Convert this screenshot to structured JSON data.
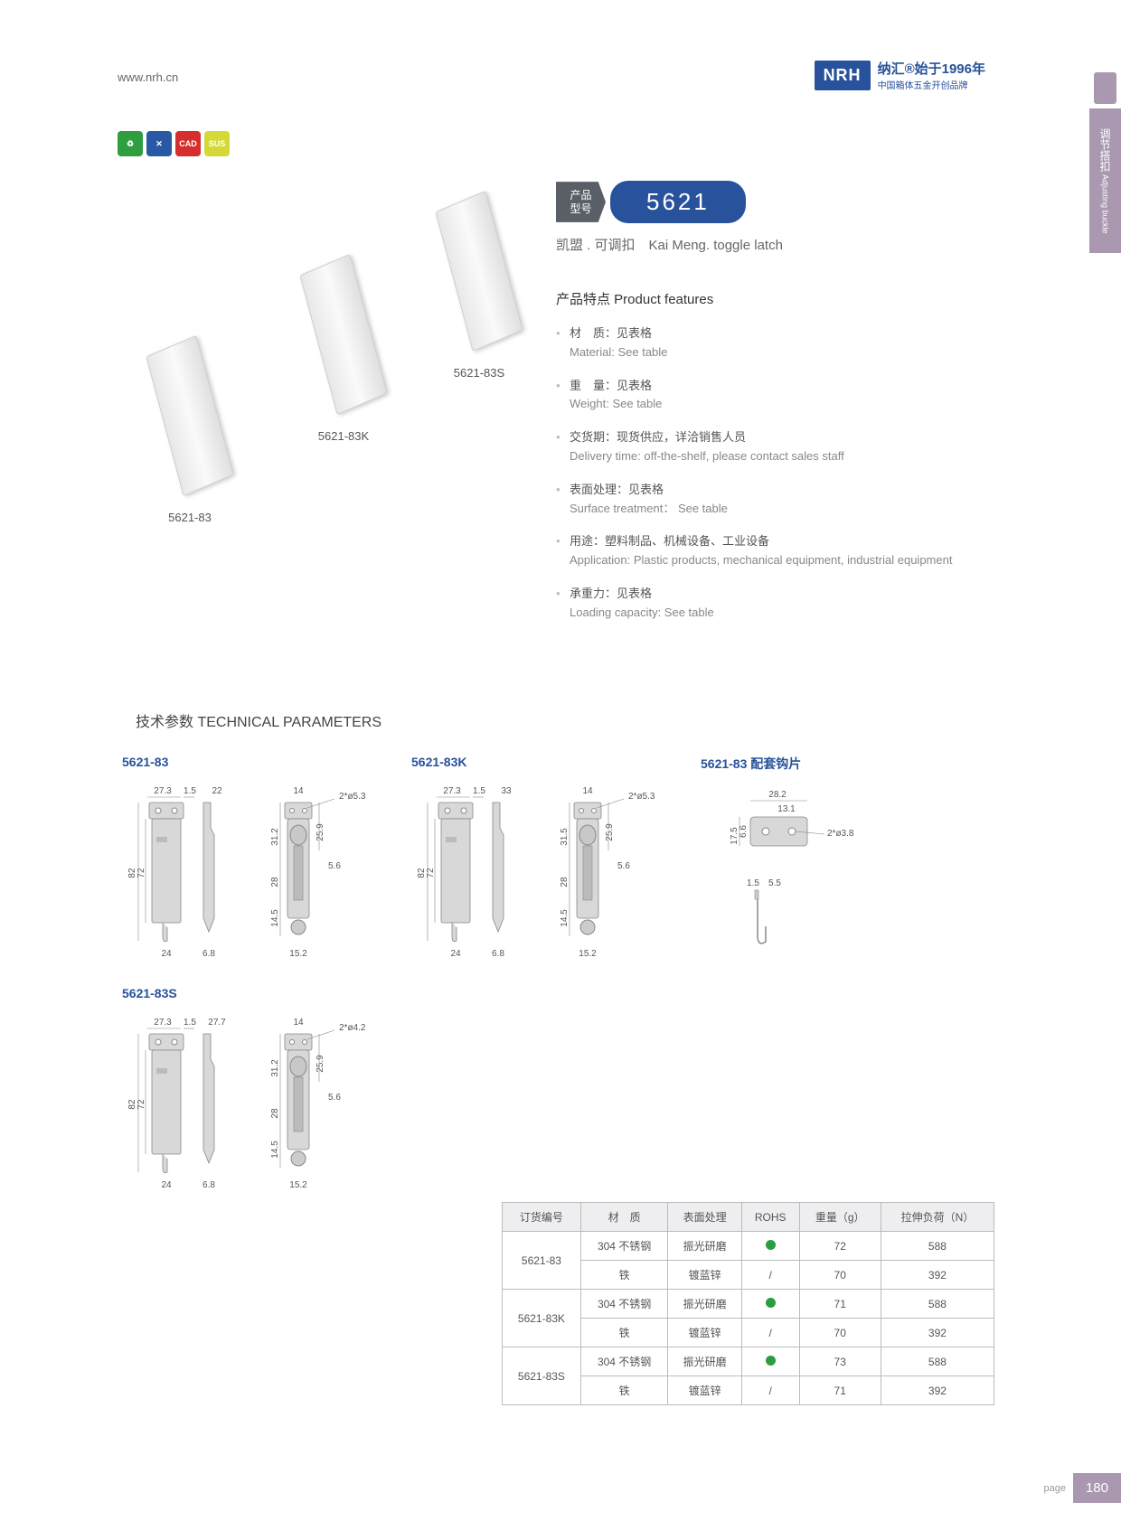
{
  "header": {
    "url": "www.nrh.cn",
    "logo_main": "NRH",
    "logo_cn": "纳汇®始于1996年",
    "logo_sub": "中国箱体五金开创品牌"
  },
  "side_tab": {
    "cn": "调节搭扣",
    "en": "Adjusting buckle"
  },
  "icons": [
    "",
    "",
    "CAD",
    "SUS"
  ],
  "product": {
    "tag": "产品\n型号",
    "number": "5621",
    "subtitle": "凯盟 . 可调扣　Kai Meng. toggle latch"
  },
  "latches": [
    {
      "label": "5621-83"
    },
    {
      "label": "5621-83K"
    },
    {
      "label": "5621-83S"
    }
  ],
  "features": {
    "title": "产品特点  Product features",
    "items": [
      {
        "cn": "材　质：见表格",
        "en": "Material: See table"
      },
      {
        "cn": "重　量：见表格",
        "en": "Weight: See table"
      },
      {
        "cn": "交货期：现货供应，详洽销售人员",
        "en": "Delivery time: off-the-shelf, please contact sales staff"
      },
      {
        "cn": "表面处理：见表格",
        "en": "Surface treatment： See table"
      },
      {
        "cn": "用途：塑料制品、机械设备、工业设备",
        "en": "Application: Plastic products, mechanical equipment, industrial equipment"
      },
      {
        "cn": "承重力：见表格",
        "en": "Loading capacity: See table"
      }
    ]
  },
  "tech_title": "技术参数  TECHNICAL PARAMETERS",
  "diagrams": {
    "d1": {
      "label": "5621-83",
      "dims": {
        "w1": "27.3",
        "t": "1.5",
        "w2": "22",
        "h1": "82",
        "h2": "72",
        "b": "24",
        "sw": "6.8",
        "bw": "14",
        "hole": "2*ø5.3",
        "sh1": "31.2",
        "sh2": "25.9",
        "sh3": "28",
        "sh4": "14.5",
        "sb": "15.2",
        "pin": "5.6"
      }
    },
    "d2": {
      "label": "5621-83K",
      "dims": {
        "w1": "27.3",
        "t": "1.5",
        "w2": "33",
        "h1": "82",
        "h2": "72",
        "b": "24",
        "sw": "6.8",
        "bw": "14",
        "hole": "2*ø5.3",
        "sh1": "31.5",
        "sh2": "25.9",
        "sh3": "28",
        "sh4": "14.5",
        "sb": "15.2",
        "pin": "5.6"
      }
    },
    "d3": {
      "label": "5621-83 配套钩片",
      "dims": {
        "w": "28.2",
        "w2": "13.1",
        "h": "17.5",
        "h2": "6.6",
        "hole": "2*ø3.8",
        "t": "1.5",
        "hook": "5.5"
      }
    },
    "d4": {
      "label": "5621-83S",
      "dims": {
        "w1": "27.3",
        "t": "1.5",
        "w2": "27.7",
        "h1": "82",
        "h2": "72",
        "b": "24",
        "sw": "6.8",
        "bw": "14",
        "hole": "2*ø4.2",
        "sh1": "31.2",
        "sh2": "25.9",
        "sh3": "28",
        "sh4": "14.5",
        "sb": "15.2",
        "pin": "5.6"
      }
    }
  },
  "table": {
    "headers": [
      "订货编号",
      "材　质",
      "表面处理",
      "ROHS",
      "重量（g）",
      "拉伸负荷（N）"
    ],
    "rows": [
      {
        "code": "5621-83",
        "r": [
          [
            "304 不锈钢",
            "振光研磨",
            "dot",
            "72",
            "588"
          ],
          [
            "铁",
            "镀蓝锌",
            "/",
            "70",
            "392"
          ]
        ]
      },
      {
        "code": "5621-83K",
        "r": [
          [
            "304 不锈钢",
            "振光研磨",
            "dot",
            "71",
            "588"
          ],
          [
            "铁",
            "镀蓝锌",
            "/",
            "70",
            "392"
          ]
        ]
      },
      {
        "code": "5621-83S",
        "r": [
          [
            "304 不锈钢",
            "振光研磨",
            "dot",
            "73",
            "588"
          ],
          [
            "铁",
            "镀蓝锌",
            "/",
            "71",
            "392"
          ]
        ]
      }
    ]
  },
  "page": {
    "word": "page",
    "num": "180"
  }
}
